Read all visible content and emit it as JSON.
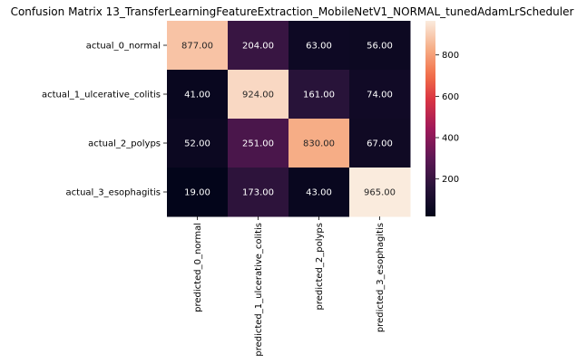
{
  "chart_data": {
    "type": "heatmap",
    "title": "Confusion Matrix 13_TransferLearningFeatureExtraction_MobileNetV1_NORMAL_tunedAdamLrScheduler",
    "rows": [
      "actual_0_normal",
      "actual_1_ulcerative_colitis",
      "actual_2_polyps",
      "actual_3_esophagitis"
    ],
    "columns": [
      "predicted_0_normal",
      "predicted_1_ulcerative_colitis",
      "predicted_2_polyps",
      "predicted_3_esophagitis"
    ],
    "values": [
      [
        877,
        204,
        63,
        56
      ],
      [
        41,
        924,
        161,
        74
      ],
      [
        52,
        251,
        830,
        67
      ],
      [
        19,
        173,
        43,
        965
      ]
    ],
    "cell_labels": [
      [
        "877.00",
        "204.00",
        "63.00",
        "56.00"
      ],
      [
        "41.00",
        "924.00",
        "161.00",
        "74.00"
      ],
      [
        "52.00",
        "251.00",
        "830.00",
        "67.00"
      ],
      [
        "19.00",
        "173.00",
        "43.00",
        "965.00"
      ]
    ],
    "colormap": "rocket",
    "colorbar": {
      "range": [
        19,
        965
      ],
      "ticks": [
        200,
        400,
        600,
        800
      ],
      "tick_labels": [
        "200",
        "400",
        "600",
        "800"
      ]
    },
    "grid": false,
    "legend": "colorbar-right"
  }
}
